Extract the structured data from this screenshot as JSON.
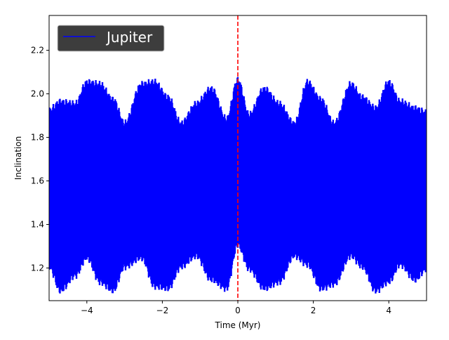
{
  "chart_data": {
    "type": "line",
    "title": "",
    "xlabel": "Time (Myr)",
    "ylabel": "Inclination",
    "xlim": [
      -5,
      5
    ],
    "ylim": [
      1.05,
      2.36
    ],
    "x_ticks": [
      -4,
      -2,
      0,
      2,
      4
    ],
    "x_tick_labels": [
      "−4",
      "−2",
      "0",
      "2",
      "4"
    ],
    "y_ticks": [
      1.2,
      1.4,
      1.6,
      1.8,
      2.0,
      2.2
    ],
    "y_tick_labels": [
      "1.2",
      "1.4",
      "1.6",
      "1.8",
      "2.0",
      "2.2"
    ],
    "grid": false,
    "legend_position": "top-left",
    "series": [
      {
        "name": "Jupiter",
        "color": "#0000ff",
        "style": "rapid oscillation band",
        "x": [
          -5.0,
          -4.7,
          -4.3,
          -4.0,
          -3.65,
          -3.3,
          -3.0,
          -2.55,
          -2.2,
          -1.85,
          -1.5,
          -1.1,
          -0.7,
          -0.3,
          0.0,
          0.3,
          0.7,
          1.1,
          1.5,
          1.85,
          2.2,
          2.55,
          3.0,
          3.3,
          3.65,
          4.0,
          4.3,
          4.7,
          5.0
        ],
        "upper": [
          1.92,
          1.96,
          1.95,
          2.05,
          2.04,
          1.97,
          1.86,
          2.04,
          2.05,
          1.98,
          1.86,
          1.95,
          2.02,
          1.88,
          2.06,
          1.9,
          2.02,
          1.95,
          1.86,
          2.05,
          1.97,
          1.86,
          2.04,
          1.98,
          1.93,
          2.05,
          1.96,
          1.93,
          1.91
        ],
        "lower": [
          1.21,
          1.1,
          1.17,
          1.25,
          1.14,
          1.1,
          1.21,
          1.25,
          1.12,
          1.11,
          1.21,
          1.26,
          1.15,
          1.11,
          1.31,
          1.2,
          1.11,
          1.14,
          1.26,
          1.22,
          1.11,
          1.13,
          1.26,
          1.21,
          1.1,
          1.14,
          1.22,
          1.15,
          1.2
        ]
      }
    ],
    "reference_line": {
      "x": 0,
      "color": "#ff0000",
      "style": "dashed"
    }
  }
}
